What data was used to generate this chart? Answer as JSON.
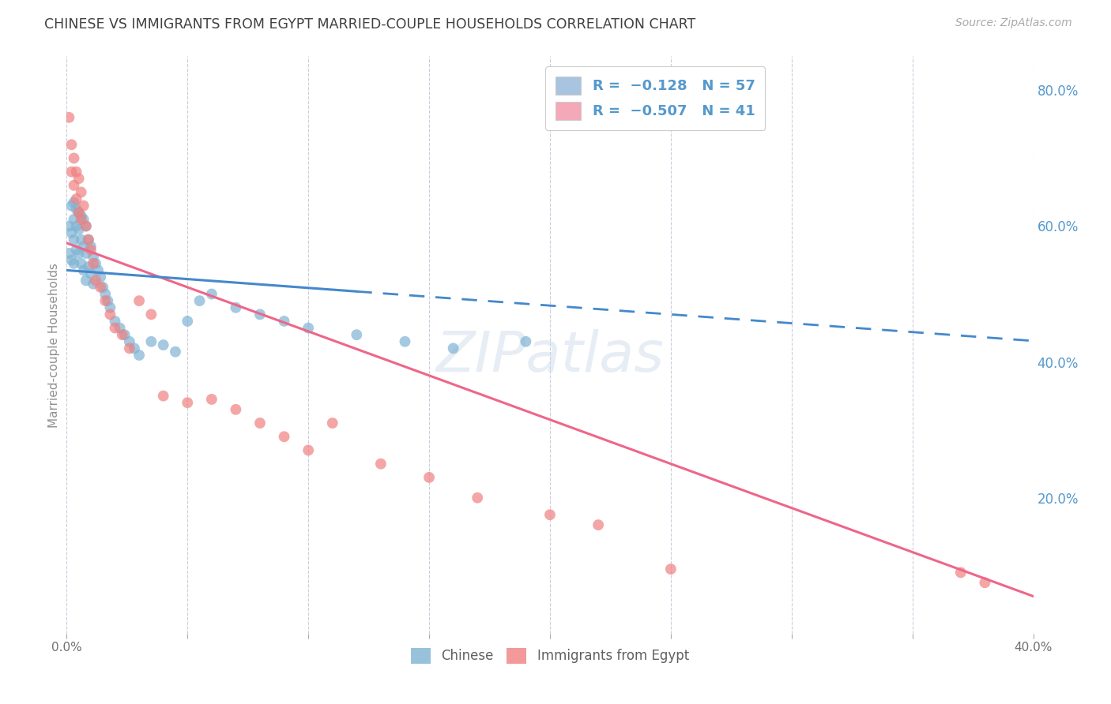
{
  "title": "CHINESE VS IMMIGRANTS FROM EGYPT MARRIED-COUPLE HOUSEHOLDS CORRELATION CHART",
  "source": "Source: ZipAtlas.com",
  "ylabel": "Married-couple Households",
  "xlim": [
    0.0,
    0.4
  ],
  "ylim": [
    0.0,
    0.85
  ],
  "xticks": [
    0.0,
    0.05,
    0.1,
    0.15,
    0.2,
    0.25,
    0.3,
    0.35,
    0.4
  ],
  "xticklabels": [
    "0.0%",
    "",
    "",
    "",
    "",
    "",
    "",
    "",
    "40.0%"
  ],
  "yticks_right": [
    0.2,
    0.4,
    0.6,
    0.8
  ],
  "ytick_right_labels": [
    "20.0%",
    "40.0%",
    "60.0%",
    "80.0%"
  ],
  "legend_color1": "#a8c4e0",
  "legend_color2": "#f4a8b8",
  "color_chinese": "#7fb3d3",
  "color_egypt": "#f08080",
  "trendline_chinese_color": "#4488cc",
  "trendline_egypt_color": "#ee6688",
  "watermark": "ZIPatlas",
  "background_color": "#ffffff",
  "grid_color": "#ccccdd",
  "title_color": "#404040",
  "axis_label_color": "#909090",
  "right_axis_color": "#5599cc",
  "bottom_legend_labels": [
    "Chinese",
    "Immigrants from Egypt"
  ],
  "watermark_color": "#c8d8e8",
  "watermark_alpha": 0.45,
  "chinese_intercept": 0.535,
  "chinese_slope": -0.26,
  "egypt_intercept": 0.575,
  "egypt_slope": -1.3,
  "chinese_x": [
    0.001,
    0.001,
    0.002,
    0.002,
    0.002,
    0.003,
    0.003,
    0.003,
    0.003,
    0.004,
    0.004,
    0.004,
    0.005,
    0.005,
    0.005,
    0.006,
    0.006,
    0.006,
    0.007,
    0.007,
    0.007,
    0.008,
    0.008,
    0.008,
    0.009,
    0.009,
    0.01,
    0.01,
    0.011,
    0.011,
    0.012,
    0.013,
    0.014,
    0.015,
    0.016,
    0.017,
    0.018,
    0.02,
    0.022,
    0.024,
    0.026,
    0.028,
    0.03,
    0.035,
    0.04,
    0.045,
    0.05,
    0.055,
    0.06,
    0.07,
    0.08,
    0.09,
    0.1,
    0.12,
    0.14,
    0.16,
    0.19
  ],
  "chinese_y": [
    0.6,
    0.56,
    0.63,
    0.59,
    0.55,
    0.635,
    0.61,
    0.58,
    0.545,
    0.625,
    0.6,
    0.565,
    0.62,
    0.595,
    0.56,
    0.615,
    0.58,
    0.545,
    0.61,
    0.57,
    0.535,
    0.6,
    0.56,
    0.52,
    0.58,
    0.54,
    0.57,
    0.53,
    0.555,
    0.515,
    0.545,
    0.535,
    0.525,
    0.51,
    0.5,
    0.49,
    0.48,
    0.46,
    0.45,
    0.44,
    0.43,
    0.42,
    0.41,
    0.43,
    0.425,
    0.415,
    0.46,
    0.49,
    0.5,
    0.48,
    0.47,
    0.46,
    0.45,
    0.44,
    0.43,
    0.42,
    0.43
  ],
  "egypt_x": [
    0.001,
    0.002,
    0.002,
    0.003,
    0.003,
    0.004,
    0.004,
    0.005,
    0.005,
    0.006,
    0.006,
    0.007,
    0.008,
    0.009,
    0.01,
    0.011,
    0.012,
    0.014,
    0.016,
    0.018,
    0.02,
    0.023,
    0.026,
    0.03,
    0.035,
    0.04,
    0.05,
    0.06,
    0.07,
    0.08,
    0.09,
    0.1,
    0.11,
    0.13,
    0.15,
    0.17,
    0.2,
    0.22,
    0.25,
    0.37,
    0.38
  ],
  "egypt_y": [
    0.76,
    0.72,
    0.68,
    0.7,
    0.66,
    0.68,
    0.64,
    0.67,
    0.62,
    0.65,
    0.61,
    0.63,
    0.6,
    0.58,
    0.565,
    0.545,
    0.52,
    0.51,
    0.49,
    0.47,
    0.45,
    0.44,
    0.42,
    0.49,
    0.47,
    0.35,
    0.34,
    0.345,
    0.33,
    0.31,
    0.29,
    0.27,
    0.31,
    0.25,
    0.23,
    0.2,
    0.175,
    0.16,
    0.095,
    0.09,
    0.075
  ]
}
